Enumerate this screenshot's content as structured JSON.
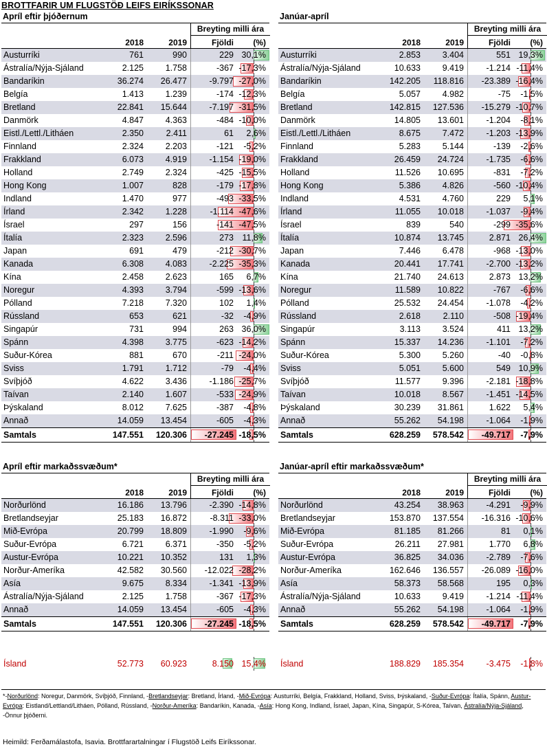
{
  "title": "BROTTFARIR UM FLUGSTÖÐ LEIFS EIRÍKSSONAR",
  "headers": {
    "y2018": "2018",
    "y2019": "2019",
    "change": "Breyting milli ára",
    "count": "Fjöldi",
    "pct": "(%)"
  },
  "panels": [
    {
      "title": "Apríl eftir þjóðernum",
      "rows": [
        [
          "Austurríki",
          "761",
          "990",
          "229",
          "30,1%"
        ],
        [
          "Ástralía/Nýja-Sjáland",
          "2.125",
          "1.758",
          "-367",
          "-17,3%"
        ],
        [
          "Bandaríkin",
          "36.274",
          "26.477",
          "-9.797",
          "-27,0%"
        ],
        [
          "Belgía",
          "1.413",
          "1.239",
          "-174",
          "-12,3%"
        ],
        [
          "Bretland",
          "22.841",
          "15.644",
          "-7.197",
          "-31,5%"
        ],
        [
          "Danmörk",
          "4.847",
          "4.363",
          "-484",
          "-10,0%"
        ],
        [
          "Eistl./Lettl./Litháen",
          "2.350",
          "2.411",
          "61",
          "2,6%"
        ],
        [
          "Finnland",
          "2.324",
          "2.203",
          "-121",
          "-5,2%"
        ],
        [
          "Frakkland",
          "6.073",
          "4.919",
          "-1.154",
          "-19,0%"
        ],
        [
          "Holland",
          "2.749",
          "2.324",
          "-425",
          "-15,5%"
        ],
        [
          "Hong Kong",
          "1.007",
          "828",
          "-179",
          "-17,8%"
        ],
        [
          "Indland",
          "1.470",
          "977",
          "-493",
          "-33,5%"
        ],
        [
          "Írland",
          "2.342",
          "1.228",
          "-1.114",
          "-47,6%"
        ],
        [
          "Ísrael",
          "297",
          "156",
          "-141",
          "-47,5%"
        ],
        [
          "Ítalía",
          "2.323",
          "2.596",
          "273",
          "11,8%"
        ],
        [
          "Japan",
          "691",
          "479",
          "-212",
          "-30,7%"
        ],
        [
          "Kanada",
          "6.308",
          "4.083",
          "-2.225",
          "-35,3%"
        ],
        [
          "Kína",
          "2.458",
          "2.623",
          "165",
          "6,7%"
        ],
        [
          "Noregur",
          "4.393",
          "3.794",
          "-599",
          "-13,6%"
        ],
        [
          "Pólland",
          "7.218",
          "7.320",
          "102",
          "1,4%"
        ],
        [
          "Rússland",
          "653",
          "621",
          "-32",
          "-4,9%"
        ],
        [
          "Singapúr",
          "731",
          "994",
          "263",
          "36,0%"
        ],
        [
          "Spánn",
          "4.398",
          "3.775",
          "-623",
          "-14,2%"
        ],
        [
          "Suður-Kórea",
          "881",
          "670",
          "-211",
          "-24,0%"
        ],
        [
          "Sviss",
          "1.791",
          "1.712",
          "-79",
          "-4,4%"
        ],
        [
          "Svíþjóð",
          "4.622",
          "3.436",
          "-1.186",
          "-25,7%"
        ],
        [
          "Taívan",
          "2.140",
          "1.607",
          "-533",
          "-24,9%"
        ],
        [
          "Þýskaland",
          "8.012",
          "7.625",
          "-387",
          "-4,8%"
        ],
        [
          "Annað",
          "14.059",
          "13.454",
          "-605",
          "-4,3%"
        ]
      ],
      "total": [
        "Samtals",
        "147.551",
        "120.306",
        "-27.245",
        "-18,5%"
      ]
    },
    {
      "title": "Janúar-apríl",
      "rows": [
        [
          "Austurríki",
          "2.853",
          "3.404",
          "551",
          "19,3%"
        ],
        [
          "Ástralía/Nýja-Sjáland",
          "10.633",
          "9.419",
          "-1.214",
          "-11,4%"
        ],
        [
          "Bandaríkin",
          "142.205",
          "118.816",
          "-23.389",
          "-16,4%"
        ],
        [
          "Belgía",
          "5.057",
          "4.982",
          "-75",
          "-1,5%"
        ],
        [
          "Bretland",
          "142.815",
          "127.536",
          "-15.279",
          "-10,7%"
        ],
        [
          "Danmörk",
          "14.805",
          "13.601",
          "-1.204",
          "-8,1%"
        ],
        [
          "Eistl./Lettl./Litháen",
          "8.675",
          "7.472",
          "-1.203",
          "-13,9%"
        ],
        [
          "Finnland",
          "5.283",
          "5.144",
          "-139",
          "-2,6%"
        ],
        [
          "Frakkland",
          "26.459",
          "24.724",
          "-1.735",
          "-6,6%"
        ],
        [
          "Holland",
          "11.526",
          "10.695",
          "-831",
          "-7,2%"
        ],
        [
          "Hong Kong",
          "5.386",
          "4.826",
          "-560",
          "-10,4%"
        ],
        [
          "Indland",
          "4.531",
          "4.760",
          "229",
          "5,1%"
        ],
        [
          "Írland",
          "11.055",
          "10.018",
          "-1.037",
          "-9,4%"
        ],
        [
          "Ísrael",
          "839",
          "540",
          "-299",
          "-35,6%"
        ],
        [
          "Ítalía",
          "10.874",
          "13.745",
          "2.871",
          "26,4%"
        ],
        [
          "Japan",
          "7.446",
          "6.478",
          "-968",
          "-13,0%"
        ],
        [
          "Kanada",
          "20.441",
          "17.741",
          "-2.700",
          "-13,2%"
        ],
        [
          "Kína",
          "21.740",
          "24.613",
          "2.873",
          "13,2%"
        ],
        [
          "Noregur",
          "11.589",
          "10.822",
          "-767",
          "-6,6%"
        ],
        [
          "Pólland",
          "25.532",
          "24.454",
          "-1.078",
          "-4,2%"
        ],
        [
          "Rússland",
          "2.618",
          "2.110",
          "-508",
          "-19,4%"
        ],
        [
          "Singapúr",
          "3.113",
          "3.524",
          "411",
          "13,2%"
        ],
        [
          "Spánn",
          "15.337",
          "14.236",
          "-1.101",
          "-7,2%"
        ],
        [
          "Suður-Kórea",
          "5.300",
          "5.260",
          "-40",
          "-0,8%"
        ],
        [
          "Sviss",
          "5.051",
          "5.600",
          "549",
          "10,9%"
        ],
        [
          "Svíþjóð",
          "11.577",
          "9.396",
          "-2.181",
          "-18,8%"
        ],
        [
          "Taívan",
          "10.018",
          "8.567",
          "-1.451",
          "-14,5%"
        ],
        [
          "Þýskaland",
          "30.239",
          "31.861",
          "1.622",
          "5,4%"
        ],
        [
          "Annað",
          "55.262",
          "54.198",
          "-1.064",
          "-1,9%"
        ]
      ],
      "total": [
        "Samtals",
        "628.259",
        "578.542",
        "-49.717",
        "-7,9%"
      ]
    },
    {
      "title": "Apríl eftir markaðssvæðum*",
      "rows": [
        [
          "Norðurlönd",
          "16.186",
          "13.796",
          "-2.390",
          "-14,8%"
        ],
        [
          "Bretlandseyjar",
          "25.183",
          "16.872",
          "-8.311",
          "-33,0%"
        ],
        [
          "Mið-Evrópa",
          "20.799",
          "18.809",
          "-1.990",
          "-9,6%"
        ],
        [
          "Suður-Evrópa",
          "6.721",
          "6.371",
          "-350",
          "-5,2%"
        ],
        [
          "Austur-Evrópa",
          "10.221",
          "10.352",
          "131",
          "1,3%"
        ],
        [
          "Norður-Ameríka",
          "42.582",
          "30.560",
          "-12.022",
          "-28,2%"
        ],
        [
          "Asía",
          "9.675",
          "8.334",
          "-1.341",
          "-13,9%"
        ],
        [
          "Ástralía/Nýja-Sjáland",
          "2.125",
          "1.758",
          "-367",
          "-17,3%"
        ],
        [
          "Annað",
          "14.059",
          "13.454",
          "-605",
          "-4,3%"
        ]
      ],
      "total": [
        "Samtals",
        "147.551",
        "120.306",
        "-27.245",
        "-18,5%"
      ],
      "iceland": [
        "Ísland",
        "52.773",
        "60.923",
        "8.150",
        "15,4%"
      ]
    },
    {
      "title": "Janúar-apríl eftir markaðssvæðum*",
      "rows": [
        [
          "Norðurlönd",
          "43.254",
          "38.963",
          "-4.291",
          "-9,9%"
        ],
        [
          "Bretlandseyjar",
          "153.870",
          "137.554",
          "-16.316",
          "-10,6%"
        ],
        [
          "Mið-Evrópa",
          "81.185",
          "81.266",
          "81",
          "0,1%"
        ],
        [
          "Suður-Evrópa",
          "26.211",
          "27.981",
          "1.770",
          "6,8%"
        ],
        [
          "Austur-Evrópa",
          "36.825",
          "34.036",
          "-2.789",
          "-7,6%"
        ],
        [
          "Norður-Ameríka",
          "162.646",
          "136.557",
          "-26.089",
          "-16,0%"
        ],
        [
          "Asía",
          "58.373",
          "58.568",
          "195",
          "0,3%"
        ],
        [
          "Ástralía/Nýja-Sjáland",
          "10.633",
          "9.419",
          "-1.214",
          "-11,4%"
        ],
        [
          "Annað",
          "55.262",
          "54.198",
          "-1.064",
          "-1,9%"
        ]
      ],
      "total": [
        "Samtals",
        "628.259",
        "578.542",
        "-49.717",
        "-7,9%"
      ],
      "iceland": [
        "Ísland",
        "188.829",
        "185.354",
        "-3.475",
        "-1,8%"
      ]
    }
  ],
  "footnote": [
    [
      "plain",
      "*-"
    ],
    [
      "u",
      "Norðurlönd"
    ],
    [
      "plain",
      ": Noregur, Danmörk, Svíþjóð, Finnland, -"
    ],
    [
      "u",
      "Bretlandseyjar"
    ],
    [
      "plain",
      ": Bretland, Írland, -"
    ],
    [
      "u",
      "Mið-Evrópa"
    ],
    [
      "plain",
      ":  Austurríki, Belgía, Frakkland, Holland, Sviss, Þýskaland, -"
    ],
    [
      "u",
      "Suður-Evrópa"
    ],
    [
      "plain",
      ": Ítalía, Spánn, "
    ],
    [
      "u",
      "Austur-Evrópa"
    ],
    [
      "plain",
      ":  Eistland/Lettland/Litháen, Pólland, Rússland, -"
    ],
    [
      "u",
      "Norður-Ameríka"
    ],
    [
      "plain",
      ":  Bandaríkin, Kanada, -"
    ],
    [
      "u",
      "Asía"
    ],
    [
      "plain",
      ":  Hong Kong, Indland, Ísrael, Japan, Kína, Singapúr, S-Kórea, Taívan, "
    ],
    [
      "u",
      "Ástralía/Nýja-Sjáland"
    ],
    [
      "plain",
      ", -Önnur þjóðerni."
    ]
  ],
  "source": "Heimild: Ferðamálastofa, Isavia. Brottfarartalningar í Flugstöð Leifs Eiríkssonar.",
  "colors": {
    "negative_bar": "#f2787e",
    "positive_bar": "#8fd39c",
    "iceland_text": "#c00000",
    "row_band": "#d9dae4"
  }
}
